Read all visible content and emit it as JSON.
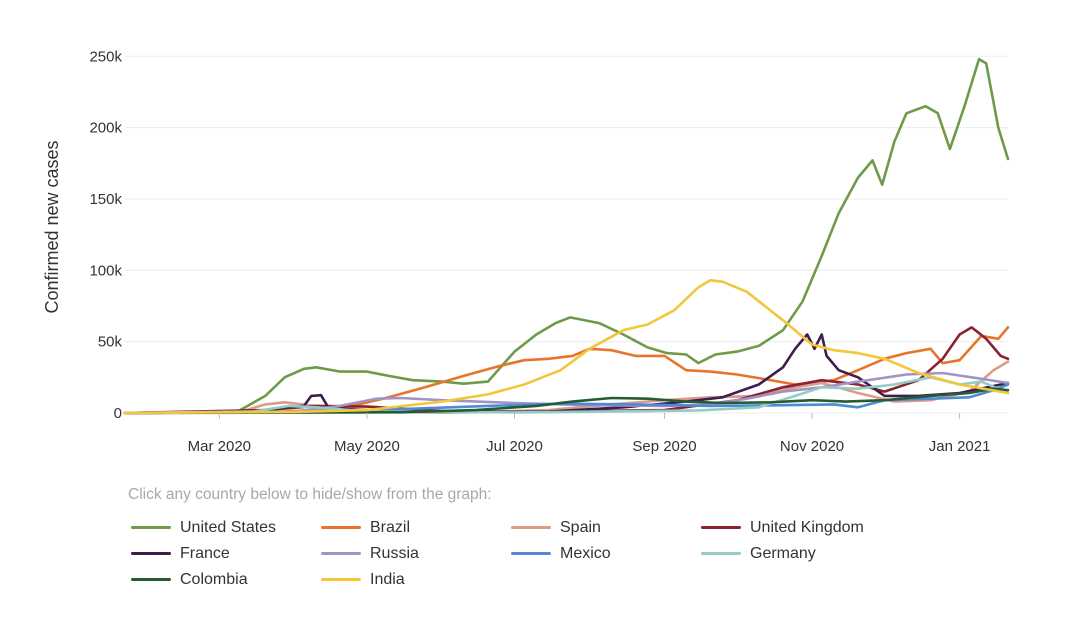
{
  "chart_data": {
    "type": "line",
    "title": "",
    "xlabel": "",
    "ylabel": "Confirmed new cases",
    "legend_hint": "Click any country below to hide/show from the graph:",
    "x_start": "2020-01-22",
    "x_end": "2021-01-21",
    "xlim": [
      "2020-01-22",
      "2021-01-21"
    ],
    "ylim": [
      0,
      260000
    ],
    "x_ticks": [
      {
        "date": "2020-03-01",
        "label": "Mar 2020"
      },
      {
        "date": "2020-05-01",
        "label": "May 2020"
      },
      {
        "date": "2020-07-01",
        "label": "Jul 2020"
      },
      {
        "date": "2020-09-01",
        "label": "Sep 2020"
      },
      {
        "date": "2020-11-01",
        "label": "Nov 2020"
      },
      {
        "date": "2021-01-01",
        "label": "Jan 2021"
      }
    ],
    "y_ticks": [
      {
        "value": 0,
        "label": "0"
      },
      {
        "value": 50000,
        "label": "50k"
      },
      {
        "value": 100000,
        "label": "100k"
      },
      {
        "value": 150000,
        "label": "150k"
      },
      {
        "value": 200000,
        "label": "200k"
      },
      {
        "value": 250000,
        "label": "250k"
      }
    ],
    "grid": true,
    "legend_position": "bottom",
    "series": [
      {
        "name": "United States",
        "color": "#6f9a4a",
        "points": [
          [
            "2020-01-22",
            0
          ],
          [
            "2020-03-08",
            500
          ],
          [
            "2020-03-20",
            12000
          ],
          [
            "2020-03-28",
            25000
          ],
          [
            "2020-04-05",
            31000
          ],
          [
            "2020-04-10",
            32000
          ],
          [
            "2020-04-20",
            29000
          ],
          [
            "2020-05-01",
            29000
          ],
          [
            "2020-05-10",
            26000
          ],
          [
            "2020-05-20",
            23000
          ],
          [
            "2020-06-01",
            22000
          ],
          [
            "2020-06-10",
            20500
          ],
          [
            "2020-06-20",
            22000
          ],
          [
            "2020-07-01",
            43000
          ],
          [
            "2020-07-10",
            55000
          ],
          [
            "2020-07-18",
            63000
          ],
          [
            "2020-07-24",
            67000
          ],
          [
            "2020-08-05",
            63000
          ],
          [
            "2020-08-15",
            55000
          ],
          [
            "2020-08-25",
            46000
          ],
          [
            "2020-09-02",
            42000
          ],
          [
            "2020-09-10",
            41000
          ],
          [
            "2020-09-15",
            35000
          ],
          [
            "2020-09-22",
            41000
          ],
          [
            "2020-10-01",
            43000
          ],
          [
            "2020-10-10",
            47000
          ],
          [
            "2020-10-20",
            58000
          ],
          [
            "2020-10-28",
            78000
          ],
          [
            "2020-11-05",
            110000
          ],
          [
            "2020-11-12",
            140000
          ],
          [
            "2020-11-20",
            165000
          ],
          [
            "2020-11-26",
            177000
          ],
          [
            "2020-11-30",
            160000
          ],
          [
            "2020-12-05",
            190000
          ],
          [
            "2020-12-10",
            210000
          ],
          [
            "2020-12-18",
            215000
          ],
          [
            "2020-12-23",
            210000
          ],
          [
            "2020-12-28",
            185000
          ],
          [
            "2021-01-03",
            215000
          ],
          [
            "2021-01-09",
            248000
          ],
          [
            "2021-01-12",
            245000
          ],
          [
            "2021-01-17",
            200000
          ],
          [
            "2021-01-21",
            178000
          ]
        ]
      },
      {
        "name": "Brazil",
        "color": "#e8742c",
        "points": [
          [
            "2020-01-22",
            0
          ],
          [
            "2020-03-20",
            500
          ],
          [
            "2020-04-10",
            2000
          ],
          [
            "2020-04-25",
            5000
          ],
          [
            "2020-05-10",
            11000
          ],
          [
            "2020-05-25",
            18000
          ],
          [
            "2020-06-10",
            26000
          ],
          [
            "2020-06-25",
            33000
          ],
          [
            "2020-07-05",
            37000
          ],
          [
            "2020-07-15",
            38000
          ],
          [
            "2020-07-25",
            40000
          ],
          [
            "2020-08-01",
            45000
          ],
          [
            "2020-08-10",
            44000
          ],
          [
            "2020-08-20",
            40000
          ],
          [
            "2020-09-01",
            40000
          ],
          [
            "2020-09-10",
            30000
          ],
          [
            "2020-09-20",
            29000
          ],
          [
            "2020-10-01",
            27000
          ],
          [
            "2020-10-15",
            23000
          ],
          [
            "2020-10-25",
            20000
          ],
          [
            "2020-11-10",
            23000
          ],
          [
            "2020-11-20",
            30000
          ],
          [
            "2020-12-01",
            38000
          ],
          [
            "2020-12-10",
            42000
          ],
          [
            "2020-12-20",
            45000
          ],
          [
            "2020-12-25",
            35000
          ],
          [
            "2021-01-01",
            37000
          ],
          [
            "2021-01-10",
            54000
          ],
          [
            "2021-01-17",
            52000
          ],
          [
            "2021-01-21",
            60000
          ]
        ]
      },
      {
        "name": "Spain",
        "color": "#de9b87",
        "points": [
          [
            "2020-01-22",
            0
          ],
          [
            "2020-03-10",
            1000
          ],
          [
            "2020-03-20",
            6000
          ],
          [
            "2020-03-28",
            7500
          ],
          [
            "2020-04-10",
            5000
          ],
          [
            "2020-04-25",
            3000
          ],
          [
            "2020-05-10",
            1000
          ],
          [
            "2020-06-10",
            500
          ],
          [
            "2020-07-15",
            2000
          ],
          [
            "2020-08-10",
            6000
          ],
          [
            "2020-09-01",
            9000
          ],
          [
            "2020-09-20",
            11000
          ],
          [
            "2020-10-10",
            12000
          ],
          [
            "2020-10-25",
            18000
          ],
          [
            "2020-11-05",
            21000
          ],
          [
            "2020-11-20",
            14000
          ],
          [
            "2020-12-05",
            8000
          ],
          [
            "2020-12-20",
            9000
          ],
          [
            "2021-01-05",
            15000
          ],
          [
            "2021-01-15",
            30000
          ],
          [
            "2021-01-21",
            36000
          ]
        ]
      },
      {
        "name": "United Kingdom",
        "color": "#8a2230",
        "points": [
          [
            "2020-01-22",
            0
          ],
          [
            "2020-03-20",
            2000
          ],
          [
            "2020-04-10",
            5000
          ],
          [
            "2020-05-01",
            4500
          ],
          [
            "2020-06-01",
            1500
          ],
          [
            "2020-07-01",
            700
          ],
          [
            "2020-09-01",
            2000
          ],
          [
            "2020-10-01",
            9000
          ],
          [
            "2020-10-20",
            18000
          ],
          [
            "2020-11-05",
            23000
          ],
          [
            "2020-11-20",
            20000
          ],
          [
            "2020-12-01",
            15000
          ],
          [
            "2020-12-15",
            23000
          ],
          [
            "2020-12-25",
            38000
          ],
          [
            "2021-01-01",
            55000
          ],
          [
            "2021-01-06",
            60000
          ],
          [
            "2021-01-12",
            52000
          ],
          [
            "2021-01-18",
            40000
          ],
          [
            "2021-01-21",
            38000
          ]
        ]
      },
      {
        "name": "France",
        "color": "#3d1e4f",
        "points": [
          [
            "2020-01-22",
            0
          ],
          [
            "2020-03-15",
            1000
          ],
          [
            "2020-03-28",
            4000
          ],
          [
            "2020-04-05",
            5000
          ],
          [
            "2020-04-08",
            12000
          ],
          [
            "2020-04-12",
            12500
          ],
          [
            "2020-04-15",
            4000
          ],
          [
            "2020-05-01",
            1500
          ],
          [
            "2020-06-01",
            500
          ],
          [
            "2020-07-15",
            1000
          ],
          [
            "2020-08-15",
            4000
          ],
          [
            "2020-09-10",
            8000
          ],
          [
            "2020-09-25",
            11000
          ],
          [
            "2020-10-10",
            20000
          ],
          [
            "2020-10-20",
            32000
          ],
          [
            "2020-10-25",
            45000
          ],
          [
            "2020-10-30",
            55000
          ],
          [
            "2020-11-02",
            45000
          ],
          [
            "2020-11-05",
            55000
          ],
          [
            "2020-11-07",
            40000
          ],
          [
            "2020-11-12",
            30000
          ],
          [
            "2020-11-20",
            25000
          ],
          [
            "2020-12-01",
            12000
          ],
          [
            "2020-12-15",
            12000
          ],
          [
            "2021-01-01",
            14000
          ],
          [
            "2021-01-21",
            21000
          ]
        ]
      },
      {
        "name": "Russia",
        "color": "#a393c4",
        "points": [
          [
            "2020-01-22",
            0
          ],
          [
            "2020-04-01",
            1000
          ],
          [
            "2020-04-20",
            5000
          ],
          [
            "2020-05-05",
            10000
          ],
          [
            "2020-05-15",
            10500
          ],
          [
            "2020-06-01",
            9000
          ],
          [
            "2020-07-01",
            7000
          ],
          [
            "2020-08-01",
            5500
          ],
          [
            "2020-09-01",
            5000
          ],
          [
            "2020-09-20",
            6000
          ],
          [
            "2020-10-05",
            10000
          ],
          [
            "2020-10-20",
            15000
          ],
          [
            "2020-11-05",
            18000
          ],
          [
            "2020-11-20",
            22000
          ],
          [
            "2020-12-10",
            27000
          ],
          [
            "2020-12-25",
            28000
          ],
          [
            "2021-01-10",
            24000
          ],
          [
            "2021-01-21",
            21000
          ]
        ]
      },
      {
        "name": "Mexico",
        "color": "#4d8bd6",
        "points": [
          [
            "2020-01-22",
            0
          ],
          [
            "2020-04-20",
            1000
          ],
          [
            "2020-05-20",
            3000
          ],
          [
            "2020-06-20",
            5000
          ],
          [
            "2020-07-20",
            6500
          ],
          [
            "2020-08-20",
            6000
          ],
          [
            "2020-09-20",
            5000
          ],
          [
            "2020-10-20",
            5500
          ],
          [
            "2020-11-10",
            6000
          ],
          [
            "2020-11-20",
            4000
          ],
          [
            "2020-12-01",
            9000
          ],
          [
            "2020-12-20",
            10000
          ],
          [
            "2021-01-05",
            11000
          ],
          [
            "2021-01-15",
            16000
          ],
          [
            "2021-01-21",
            20000
          ]
        ]
      },
      {
        "name": "Germany",
        "color": "#93ccc4",
        "points": [
          [
            "2020-01-22",
            0
          ],
          [
            "2020-03-15",
            1000
          ],
          [
            "2020-03-30",
            5000
          ],
          [
            "2020-04-10",
            4000
          ],
          [
            "2020-05-01",
            1000
          ],
          [
            "2020-07-01",
            400
          ],
          [
            "2020-08-15",
            1200
          ],
          [
            "2020-09-15",
            1800
          ],
          [
            "2020-10-10",
            4000
          ],
          [
            "2020-10-25",
            12000
          ],
          [
            "2020-11-05",
            18000
          ],
          [
            "2020-11-20",
            17000
          ],
          [
            "2020-12-05",
            20000
          ],
          [
            "2020-12-20",
            25000
          ],
          [
            "2021-01-01",
            20000
          ],
          [
            "2021-01-10",
            22000
          ],
          [
            "2021-01-21",
            14000
          ]
        ]
      },
      {
        "name": "Colombia",
        "color": "#255c35",
        "points": [
          [
            "2020-01-22",
            0
          ],
          [
            "2020-05-15",
            500
          ],
          [
            "2020-06-15",
            2000
          ],
          [
            "2020-07-10",
            5000
          ],
          [
            "2020-07-25",
            8000
          ],
          [
            "2020-08-10",
            10500
          ],
          [
            "2020-08-25",
            10000
          ],
          [
            "2020-09-10",
            8000
          ],
          [
            "2020-09-25",
            7000
          ],
          [
            "2020-10-15",
            7500
          ],
          [
            "2020-11-01",
            9000
          ],
          [
            "2020-11-15",
            8000
          ],
          [
            "2020-12-01",
            9000
          ],
          [
            "2020-12-20",
            12000
          ],
          [
            "2021-01-05",
            14000
          ],
          [
            "2021-01-15",
            17000
          ],
          [
            "2021-01-21",
            16000
          ]
        ]
      },
      {
        "name": "India",
        "color": "#f2c73a",
        "points": [
          [
            "2020-01-22",
            0
          ],
          [
            "2020-04-01",
            800
          ],
          [
            "2020-05-01",
            2000
          ],
          [
            "2020-06-01",
            8000
          ],
          [
            "2020-06-20",
            13000
          ],
          [
            "2020-07-05",
            20000
          ],
          [
            "2020-07-20",
            30000
          ],
          [
            "2020-08-01",
            45000
          ],
          [
            "2020-08-15",
            58000
          ],
          [
            "2020-08-25",
            62000
          ],
          [
            "2020-09-05",
            72000
          ],
          [
            "2020-09-15",
            88000
          ],
          [
            "2020-09-20",
            93000
          ],
          [
            "2020-09-25",
            92000
          ],
          [
            "2020-10-05",
            85000
          ],
          [
            "2020-10-20",
            65000
          ],
          [
            "2020-11-01",
            48000
          ],
          [
            "2020-11-10",
            44000
          ],
          [
            "2020-11-20",
            42000
          ],
          [
            "2020-12-01",
            38000
          ],
          [
            "2020-12-15",
            28000
          ],
          [
            "2021-01-01",
            20000
          ],
          [
            "2021-01-21",
            14000
          ]
        ]
      }
    ]
  }
}
